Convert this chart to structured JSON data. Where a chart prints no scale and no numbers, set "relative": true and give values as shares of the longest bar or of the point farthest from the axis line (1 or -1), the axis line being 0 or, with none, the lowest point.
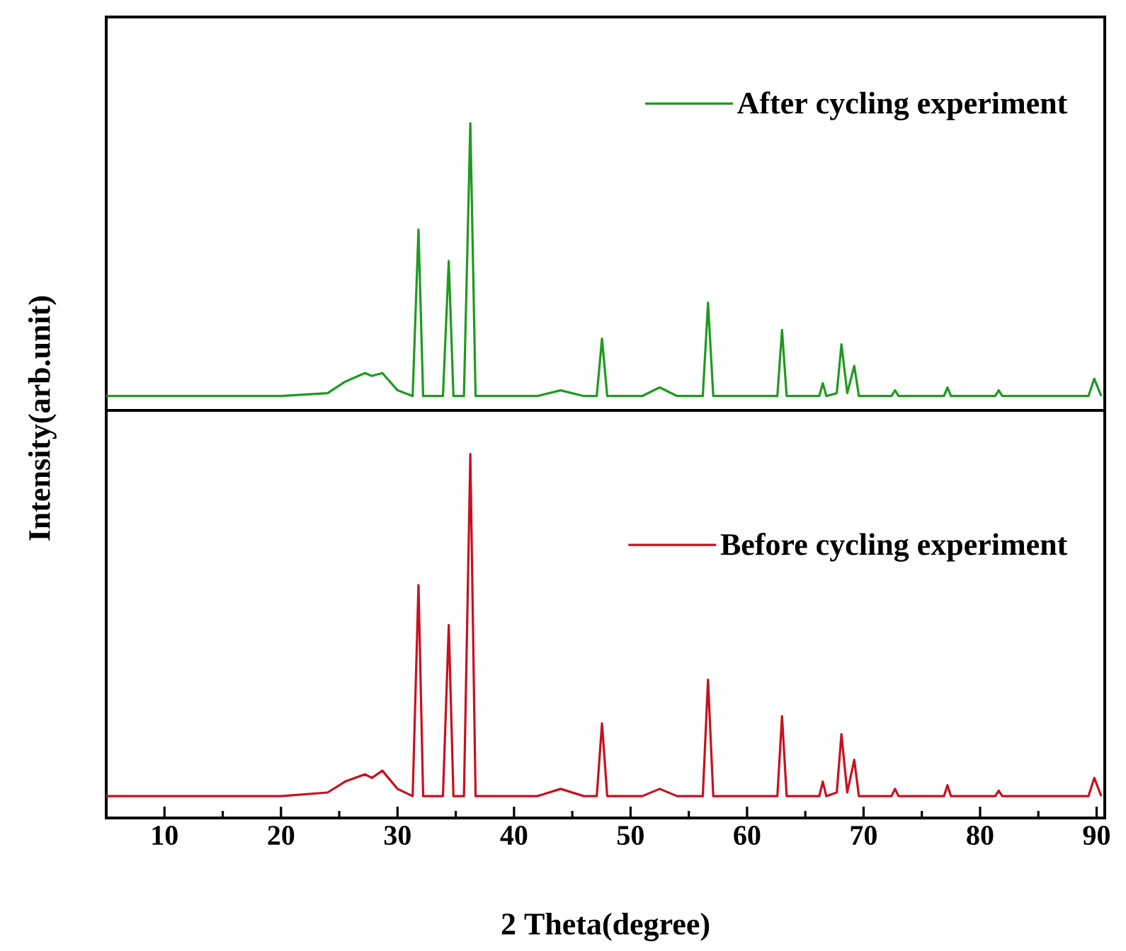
{
  "chart_data": [
    {
      "type": "line",
      "relative": true,
      "xlim": [
        5,
        90.7
      ],
      "tick_labels": false,
      "legend": "top right",
      "ylabel": "Intensity(arb.unit)",
      "series": [
        {
          "name": "After cycling experiment",
          "color": "#1f9a1f",
          "x": [
            5,
            10,
            15,
            20,
            24,
            25.5,
            27.2,
            27.8,
            28.7,
            30,
            31.3,
            31.8,
            32.2,
            33.9,
            34.4,
            34.8,
            35.7,
            36.25,
            36.7,
            38,
            42,
            44,
            46,
            47.1,
            47.55,
            48,
            51,
            52.5,
            54,
            56.2,
            56.65,
            57.1,
            60,
            62.6,
            63.0,
            63.4,
            66.2,
            66.5,
            66.8,
            67.7,
            68.1,
            68.6,
            69.2,
            69.6,
            72.4,
            72.7,
            73,
            76.9,
            77.2,
            77.5,
            81.3,
            81.6,
            81.9,
            89.3,
            89.8,
            90.4
          ],
          "values": [
            0.05,
            0.05,
            0.05,
            0.05,
            0.06,
            0.1,
            0.13,
            0.12,
            0.13,
            0.07,
            0.05,
            0.63,
            0.05,
            0.05,
            0.52,
            0.05,
            0.05,
            1,
            0.05,
            0.05,
            0.05,
            0.07,
            0.05,
            0.05,
            0.25,
            0.05,
            0.05,
            0.08,
            0.05,
            0.05,
            0.375,
            0.05,
            0.05,
            0.05,
            0.28,
            0.05,
            0.05,
            0.095,
            0.05,
            0.06,
            0.23,
            0.06,
            0.155,
            0.05,
            0.05,
            0.07,
            0.05,
            0.05,
            0.08,
            0.05,
            0.05,
            0.07,
            0.05,
            0.05,
            0.11,
            0.05
          ]
        }
      ]
    },
    {
      "type": "line",
      "relative": true,
      "xlim": [
        5,
        90.7
      ],
      "xticks": [
        10,
        {
          "value": 15,
          "label": null
        },
        20,
        {
          "value": 25,
          "label": null
        },
        30,
        {
          "value": 35,
          "label": null
        },
        40,
        {
          "value": 45,
          "label": null
        },
        50,
        {
          "value": 55,
          "label": null
        },
        60,
        {
          "value": 65,
          "label": null
        },
        70,
        {
          "value": 75,
          "label": null
        },
        80,
        {
          "value": 85,
          "label": null
        },
        90
      ],
      "tick_labels": "x",
      "legend": "right",
      "xlabel": "2 Theta(degree)",
      "series": [
        {
          "name": "Before cycling experiment",
          "color": "#c8101e",
          "x": [
            5,
            10,
            15,
            20,
            24,
            25.5,
            27.2,
            27.8,
            28.7,
            30,
            31.3,
            31.8,
            32.2,
            33.9,
            34.4,
            34.8,
            35.7,
            36.25,
            36.7,
            38,
            42,
            44,
            46,
            47.1,
            47.55,
            48,
            51,
            52.5,
            54,
            56.2,
            56.65,
            57.1,
            60,
            62.6,
            63.0,
            63.4,
            66.2,
            66.5,
            66.8,
            67.7,
            68.1,
            68.6,
            69.2,
            69.6,
            72.4,
            72.7,
            73,
            76.9,
            77.2,
            77.5,
            81.3,
            81.6,
            81.9,
            89.3,
            89.8,
            90.4
          ],
          "values": [
            0.06,
            0.06,
            0.06,
            0.06,
            0.07,
            0.1,
            0.12,
            0.11,
            0.13,
            0.08,
            0.06,
            0.64,
            0.06,
            0.06,
            0.53,
            0.06,
            0.06,
            1,
            0.06,
            0.06,
            0.06,
            0.08,
            0.06,
            0.06,
            0.26,
            0.06,
            0.06,
            0.08,
            0.06,
            0.06,
            0.38,
            0.06,
            0.06,
            0.06,
            0.28,
            0.06,
            0.06,
            0.1,
            0.06,
            0.07,
            0.23,
            0.07,
            0.16,
            0.06,
            0.06,
            0.08,
            0.06,
            0.06,
            0.09,
            0.06,
            0.06,
            0.075,
            0.06,
            0.06,
            0.11,
            0.06
          ]
        }
      ]
    }
  ]
}
